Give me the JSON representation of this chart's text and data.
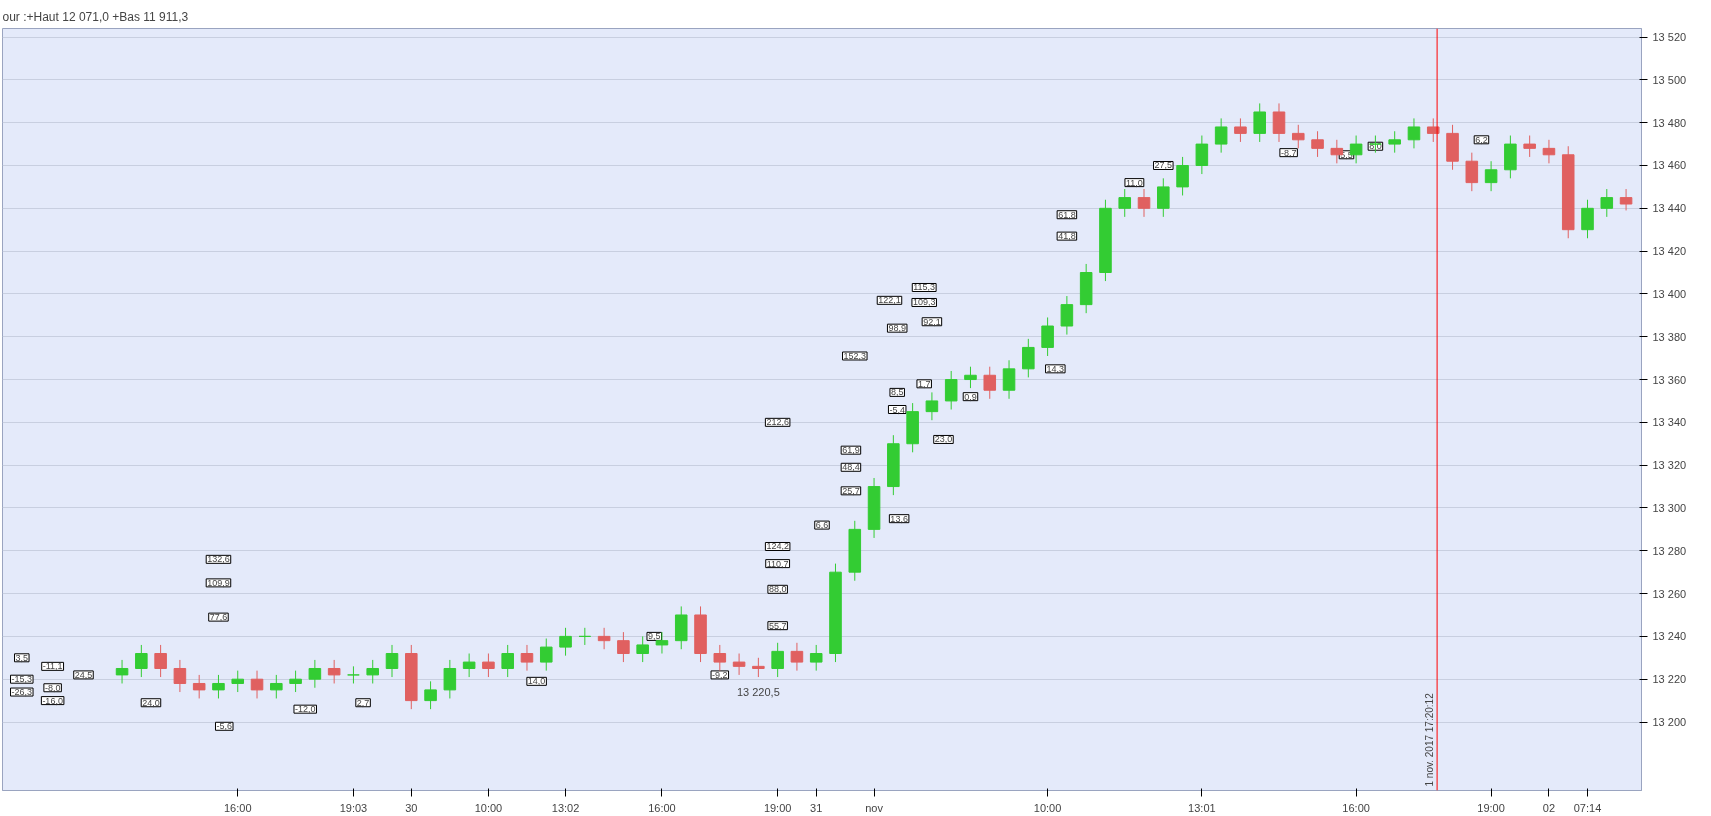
{
  "chart_data": {
    "type": "candlestick",
    "title": "our :+Haut 12 071,0 +Bas 11 911,3",
    "categories": [
      null,
      null,
      null,
      null,
      null,
      null,
      "16:00",
      null,
      null,
      null,
      null,
      null,
      "19:03",
      null,
      null,
      "30",
      null,
      null,
      null,
      "10:00",
      null,
      null,
      null,
      "13:02",
      null,
      null,
      null,
      null,
      "16:00",
      null,
      null,
      null,
      null,
      null,
      "19:00",
      null,
      "31",
      null,
      null,
      "nov",
      null,
      null,
      null,
      null,
      null,
      null,
      null,
      null,
      "10:00",
      null,
      null,
      null,
      null,
      null,
      null,
      null,
      "13:01",
      null,
      null,
      null,
      null,
      null,
      null,
      null,
      "16:00",
      null,
      null,
      null,
      null,
      null,
      null,
      "19:00",
      null,
      null,
      "02",
      null,
      "07:14",
      null,
      null
    ],
    "ohlc": [
      [
        13222,
        13229,
        13218,
        13225
      ],
      [
        13225,
        13236,
        13221,
        13232
      ],
      [
        13232,
        13236,
        13221,
        13225
      ],
      [
        13225,
        13229,
        13214,
        13218
      ],
      [
        13218,
        13222,
        13211,
        13215
      ],
      [
        13215,
        13222,
        13211,
        13218
      ],
      [
        13218,
        13224,
        13214,
        13220
      ],
      [
        13220,
        13224,
        13211,
        13215
      ],
      [
        13215,
        13222,
        13211,
        13218
      ],
      [
        13218,
        13224,
        13214,
        13220
      ],
      [
        13220,
        13229,
        13216,
        13225
      ],
      [
        13225,
        13229,
        13218,
        13222
      ],
      [
        13222,
        13226,
        13218,
        13222
      ],
      [
        13222,
        13229,
        13218,
        13225
      ],
      [
        13225,
        13236,
        13221,
        13232
      ],
      [
        13232,
        13236,
        13206,
        13210
      ],
      [
        13210,
        13219,
        13206,
        13215
      ],
      [
        13215,
        13229,
        13211,
        13225
      ],
      [
        13225,
        13232,
        13221,
        13228
      ],
      [
        13228,
        13232,
        13221,
        13225
      ],
      [
        13225,
        13236,
        13221,
        13232
      ],
      [
        13232,
        13236,
        13224,
        13228
      ],
      [
        13228,
        13239,
        13224,
        13235
      ],
      [
        13235,
        13244,
        13231,
        13240
      ],
      [
        13240,
        13244,
        13236,
        13240
      ],
      [
        13240,
        13244,
        13234,
        13238
      ],
      [
        13238,
        13242,
        13228,
        13232
      ],
      [
        13232,
        13240,
        13228,
        13236
      ],
      [
        13236,
        13242,
        13232,
        13238
      ],
      [
        13238,
        13254,
        13234,
        13250
      ],
      [
        13250,
        13254,
        13228,
        13232
      ],
      [
        13232,
        13236,
        13224,
        13228
      ],
      [
        13228,
        13232,
        13222,
        13226
      ],
      [
        13226,
        13230,
        13221,
        13225
      ],
      [
        13225,
        13237,
        13221,
        13233
      ],
      [
        13233,
        13237,
        13224,
        13228
      ],
      [
        13228,
        13236,
        13224,
        13232
      ],
      [
        13232,
        13274,
        13228,
        13270
      ],
      [
        13270,
        13294,
        13266,
        13290
      ],
      [
        13290,
        13314,
        13286,
        13310
      ],
      [
        13310,
        13334,
        13306,
        13330
      ],
      [
        13330,
        13349,
        13326,
        13345
      ],
      [
        13345,
        13354,
        13341,
        13350
      ],
      [
        13350,
        13364,
        13346,
        13360
      ],
      [
        13360,
        13366,
        13356,
        13362
      ],
      [
        13362,
        13366,
        13351,
        13355
      ],
      [
        13355,
        13369,
        13351,
        13365
      ],
      [
        13365,
        13379,
        13361,
        13375
      ],
      [
        13375,
        13389,
        13371,
        13385
      ],
      [
        13385,
        13399,
        13381,
        13395
      ],
      [
        13395,
        13414,
        13391,
        13410
      ],
      [
        13410,
        13444,
        13406,
        13440
      ],
      [
        13440,
        13449,
        13436,
        13445
      ],
      [
        13445,
        13449,
        13436,
        13440
      ],
      [
        13440,
        13454,
        13436,
        13450
      ],
      [
        13450,
        13464,
        13446,
        13460
      ],
      [
        13460,
        13474,
        13456,
        13470
      ],
      [
        13470,
        13482,
        13466,
        13478
      ],
      [
        13478,
        13482,
        13471,
        13475
      ],
      [
        13475,
        13489,
        13471,
        13485
      ],
      [
        13485,
        13489,
        13471,
        13475
      ],
      [
        13475,
        13479,
        13468,
        13472
      ],
      [
        13472,
        13476,
        13464,
        13468
      ],
      [
        13468,
        13472,
        13461,
        13465
      ],
      [
        13465,
        13474,
        13461,
        13470
      ],
      [
        13470,
        13474,
        13466,
        13470
      ],
      [
        13470,
        13476,
        13466,
        13472
      ],
      [
        13472,
        13482,
        13468,
        13478
      ],
      [
        13478,
        13482,
        13471,
        13475
      ],
      [
        13475,
        13479,
        13458,
        13462
      ],
      [
        13462,
        13466,
        13448,
        13452
      ],
      [
        13452,
        13462,
        13448,
        13458
      ],
      [
        13458,
        13474,
        13454,
        13470
      ],
      [
        13470,
        13474,
        13464,
        13468
      ],
      [
        13468,
        13472,
        13461,
        13465
      ],
      [
        13465,
        13469,
        13426,
        13430
      ],
      [
        13430,
        13444,
        13426,
        13440
      ],
      [
        13440,
        13449,
        13436,
        13445
      ],
      [
        13445,
        13449,
        13439,
        13442
      ]
    ],
    "ylim": [
      13168,
      13524
    ],
    "yticks": [
      13200,
      13220,
      13240,
      13260,
      13280,
      13300,
      13320,
      13340,
      13360,
      13380,
      13400,
      13420,
      13440,
      13460,
      13480,
      13500,
      13520
    ],
    "grid": "y",
    "ref_lines": [
      {
        "axis": "x",
        "label": "1 nov. 2017 17:20:12",
        "color": "#ff0000"
      }
    ],
    "annotations": [
      {
        "text": "132,6",
        "y": 13276
      },
      {
        "text": "109,9",
        "y": 13265
      },
      {
        "text": "77,6",
        "y": 13249
      },
      "24,5",
      {
        "text": "14,0",
        "y": 13219
      },
      {
        "text": "-12,0",
        "y": 13206
      },
      "3,5",
      "-11,1",
      "-15,3",
      "-26,3",
      "-8,0",
      "-16,0",
      {
        "text": "24,0",
        "y": 13209
      },
      {
        "text": "2,7",
        "y": 13209
      },
      {
        "text": "-5,6",
        "y": 13198
      },
      {
        "text": "9,5",
        "y": 13240
      },
      {
        "text": "-9,2",
        "y": 13222
      },
      "13 220,5",
      {
        "text": "212,6",
        "y": 13340
      },
      {
        "text": "124,2",
        "y": 13282
      },
      {
        "text": "110,7",
        "y": 13274
      },
      {
        "text": "88,0",
        "y": 13262
      },
      {
        "text": "55,7",
        "y": 13245
      },
      {
        "text": "152,3",
        "y": 13371
      },
      {
        "text": "61,9",
        "y": 13327
      },
      {
        "text": "48,4",
        "y": 13319
      },
      {
        "text": "25,7",
        "y": 13308
      },
      {
        "text": "6,6",
        "y": 13292
      },
      {
        "text": "13,6",
        "y": 13295
      },
      {
        "text": "122,1",
        "y": 13397
      },
      {
        "text": "115,3",
        "y": 13403
      },
      {
        "text": "109,3",
        "y": 13396
      },
      {
        "text": "98,9",
        "y": 13384
      },
      {
        "text": "92,1",
        "y": 13387
      },
      {
        "text": "8,5",
        "y": 13354
      },
      {
        "text": "-5,4",
        "y": 13346
      },
      {
        "text": "1,7",
        "y": 13358
      },
      {
        "text": "0,9",
        "y": 13352
      },
      {
        "text": "23,0",
        "y": 13332
      },
      {
        "text": "14,3",
        "y": 13365
      },
      {
        "text": "61,8",
        "y": 13437
      },
      {
        "text": "41,8",
        "y": 13427
      },
      {
        "text": "11,0",
        "y": 13452
      },
      {
        "text": "27,5",
        "y": 13460
      },
      {
        "text": "-8,7",
        "y": 13466
      },
      {
        "text": "5,5",
        "y": 13465
      },
      {
        "text": "8,0",
        "y": 13469
      },
      {
        "text": "6,2",
        "y": 13472
      }
    ]
  }
}
